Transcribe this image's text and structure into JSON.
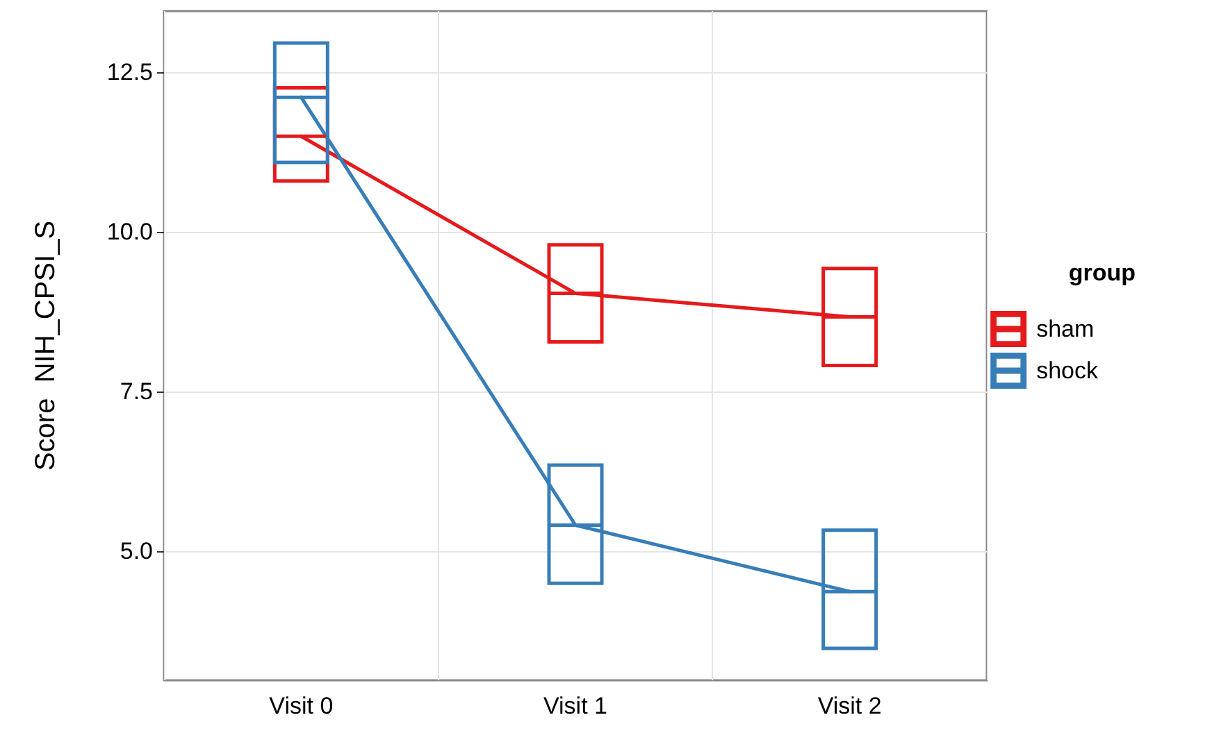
{
  "chart_data": {
    "type": "box",
    "ylabel": "Score  NIH_CPSI_S",
    "legend_title": "group",
    "categories": [
      "Visit 0",
      "Visit 1",
      "Visit 2"
    ],
    "series": [
      {
        "name": "sham",
        "color": "#e41a1c",
        "boxes": [
          {
            "low": 10.8,
            "q1": 10.8,
            "median": 11.5,
            "q3": 12.26,
            "high": 12.26
          },
          {
            "low": 8.28,
            "q1": 8.28,
            "median": 9.04,
            "q3": 9.8,
            "high": 9.8
          },
          {
            "low": 7.91,
            "q1": 7.91,
            "median": 8.67,
            "q3": 9.43,
            "high": 9.43
          }
        ]
      },
      {
        "name": "shock",
        "color": "#377eb8",
        "boxes": [
          {
            "low": 11.09,
            "q1": 11.09,
            "median": 12.11,
            "q3": 12.96,
            "high": 12.96
          },
          {
            "low": 4.5,
            "q1": 4.5,
            "median": 5.41,
            "q3": 6.35,
            "high": 6.35
          },
          {
            "low": 3.48,
            "q1": 3.48,
            "median": 4.37,
            "q3": 5.33,
            "high": 5.33
          }
        ]
      },
      {
        "type": "line",
        "color": "#e41a1c",
        "values": [
          11.5,
          9.04,
          8.67
        ]
      },
      {
        "type": "line",
        "color": "#377eb8",
        "values": [
          12.11,
          5.41,
          4.37
        ]
      }
    ],
    "ylim": [
      2.98,
      13.46
    ],
    "yticks": [
      {
        "value": 5,
        "label": "5.0"
      },
      {
        "value": 7.5,
        "label": "7.5"
      },
      {
        "value": 10,
        "label": "10.0"
      },
      {
        "value": 12.5,
        "label": "12.5"
      }
    ],
    "grid": true,
    "legend": "right",
    "marker": "none",
    "line_style": "solid"
  }
}
